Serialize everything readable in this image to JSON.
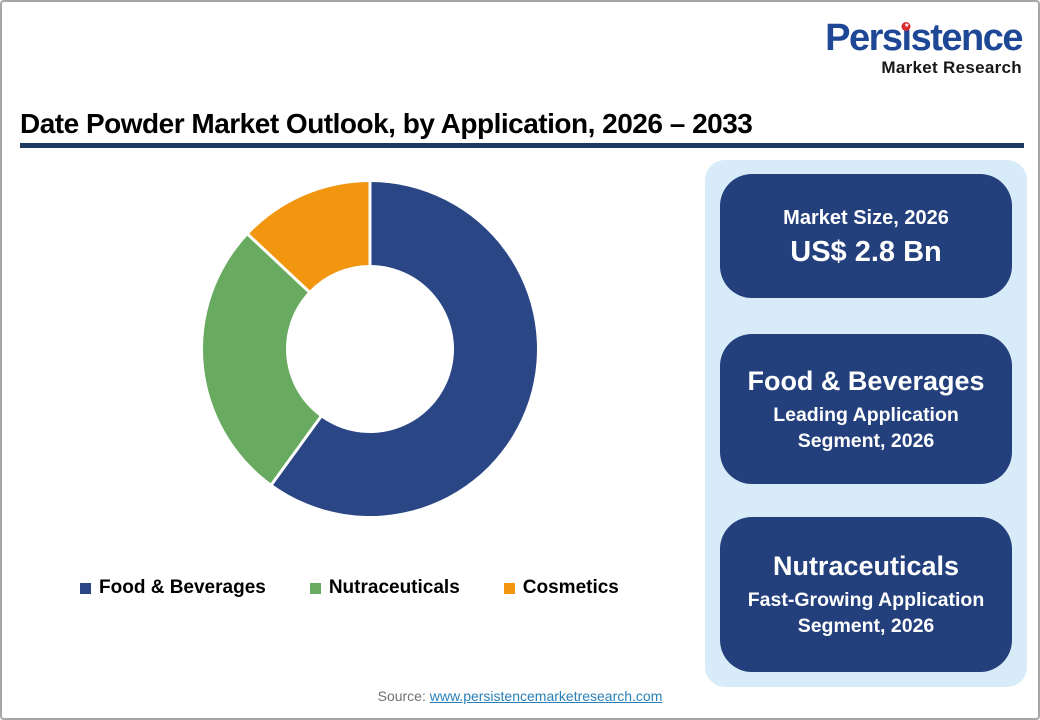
{
  "logo": {
    "brand": "Persistence",
    "subtitle": "Market Research",
    "brand_color": "#1e4796",
    "dot_color": "#d92b2f",
    "dot_star": "★"
  },
  "title": "Date Powder Market Outlook, by Application, 2026 – 2033",
  "title_rule_color": "#1f3a5f",
  "chart_data": {
    "type": "pie",
    "subtype": "donut",
    "title": "Date Powder Market Outlook, by Application, 2026 – 2033",
    "categories": [
      "Food & Beverages",
      "Nutraceuticals",
      "Cosmetics"
    ],
    "values": [
      60,
      27,
      13
    ],
    "values_are_estimates_from_arc_angles": true,
    "colors": [
      "#2b4685",
      "#68aa60",
      "#f2960f"
    ],
    "start_angle_deg": 0,
    "direction": "clockwise",
    "inner_radius_ratio": 0.5,
    "slice_gap_color": "#ffffff",
    "legend_position": "bottom"
  },
  "panel": {
    "bg": "#d8ebf8",
    "card_bg": "#24407c",
    "cards": [
      {
        "line1": "Market Size, 2026",
        "line2": "US$ 2.8 Bn"
      },
      {
        "line1": "Food & Beverages",
        "line2": "Leading Application Segment, 2026"
      },
      {
        "line1": "Nutraceuticals",
        "line2": "Fast-Growing Application Segment, 2026"
      }
    ]
  },
  "source": {
    "label": "Source:",
    "url": "www.persistencemarketresearch.com",
    "link_color": "#2980b9"
  }
}
